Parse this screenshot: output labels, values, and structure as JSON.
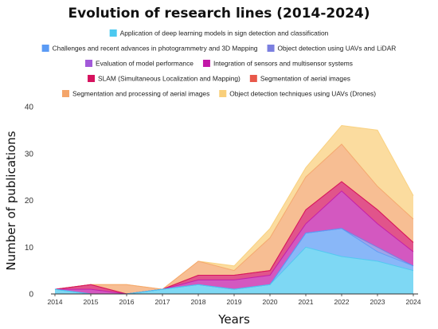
{
  "chart_data": {
    "type": "area",
    "stacked": true,
    "title": "Evolution of research lines (2014-2024)",
    "xlabel": "Years",
    "ylabel": "Number of publications",
    "ylim": [
      0,
      40
    ],
    "yticks": [
      0,
      10,
      20,
      30,
      40
    ],
    "grid": false,
    "legend_position": "top",
    "categories": [
      "2014",
      "2015",
      "2016",
      "2017",
      "2018",
      "2019",
      "2020",
      "2021",
      "2022",
      "2023",
      "2024"
    ],
    "series": [
      {
        "name": "Application of deep learning models in sign detection and classification",
        "color": "#4cc9f0",
        "values": [
          1,
          0,
          0,
          1,
          2,
          1,
          2,
          10,
          8,
          7,
          5
        ]
      },
      {
        "name": "Challenges and recent advances in photogrammetry and 3D Mapping",
        "color": "#5b9bf5",
        "values": [
          0,
          0,
          0,
          0,
          0,
          0,
          0,
          3,
          6,
          2,
          1
        ]
      },
      {
        "name": "Object detection using UAVs and LiDAR",
        "color": "#7b7fe0",
        "values": [
          0,
          0,
          0,
          0,
          0,
          0,
          0,
          0,
          0,
          1,
          0
        ]
      },
      {
        "name": "Evaluation of model performance",
        "color": "#a259d9",
        "values": [
          0,
          0,
          0,
          0,
          0,
          0,
          0,
          0,
          0,
          0,
          0
        ]
      },
      {
        "name": "Integration of sensors and multisensor systems",
        "color": "#c218a8",
        "values": [
          0,
          1,
          0,
          0,
          1,
          2,
          2,
          2,
          8,
          5,
          3
        ]
      },
      {
        "name": "SLAM (Simultaneous Localization and Mapping)",
        "color": "#d6125e",
        "values": [
          0,
          1,
          0,
          0,
          1,
          1,
          1,
          3,
          2,
          3,
          2
        ]
      },
      {
        "name": "Segmentation of aerial images",
        "color": "#e8584a",
        "values": [
          0,
          0,
          0,
          0,
          0,
          0,
          0,
          0,
          0,
          0,
          0
        ]
      },
      {
        "name": "Segmentation and processing of aerial images",
        "color": "#f4a56a",
        "values": [
          0,
          0,
          2,
          0,
          3,
          1,
          7,
          7,
          8,
          5,
          5
        ]
      },
      {
        "name": "Object detection techniques using UAVs (Drones)",
        "color": "#f9cf7a",
        "values": [
          0,
          0,
          0,
          0,
          0,
          1,
          2,
          2,
          4,
          12,
          5
        ]
      }
    ]
  }
}
